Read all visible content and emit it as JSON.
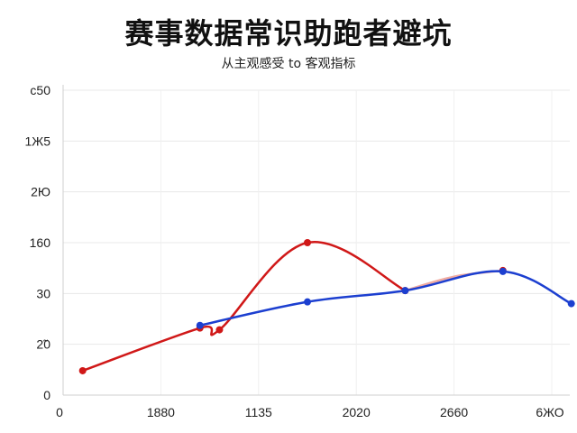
{
  "chart_data": {
    "type": "line",
    "title": "赛事数据常识助跑者避坑",
    "subtitle": "从主观感受 to 客观指标",
    "xlabel": "",
    "ylabel": "",
    "x_ticks": [
      "0",
      "1880",
      "1135",
      "2020",
      "2660",
      "6ЖО"
    ],
    "y_ticks": [
      "0",
      "2̃0",
      "30",
      "160",
      "2Ю",
      "1Ж5",
      "ϲ50"
    ],
    "ylim": [
      0,
      350
    ],
    "grid": true,
    "colors": {
      "red": "#d01818",
      "blue": "#1c3fd0",
      "pink": "#f0aaa0"
    },
    "series": [
      {
        "color_key": "red",
        "points": [
          [
            0.2,
            28
          ],
          [
            1.4,
            77
          ],
          [
            1.6,
            75
          ],
          [
            2.5,
            175
          ],
          [
            3.5,
            120
          ]
        ],
        "fade_points": [
          [
            3.5,
            120
          ],
          [
            4.0,
            136
          ],
          [
            4.5,
            143
          ]
        ]
      },
      {
        "color_key": "blue",
        "points": [
          [
            1.4,
            80
          ],
          [
            2.5,
            107
          ],
          [
            3.5,
            120
          ],
          [
            4.5,
            142
          ],
          [
            5.2,
            105
          ]
        ]
      }
    ]
  }
}
